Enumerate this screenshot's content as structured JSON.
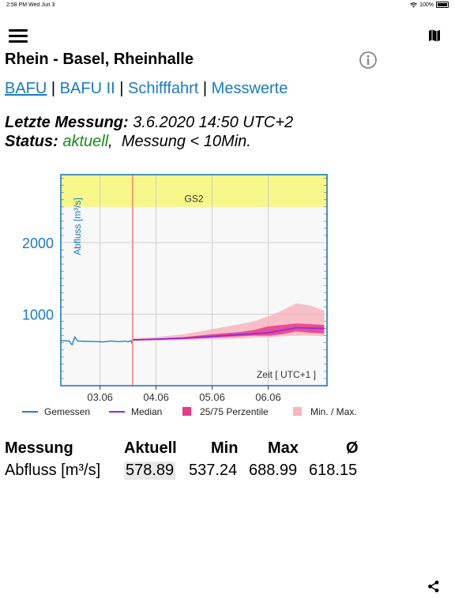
{
  "status_bar": {
    "time": "2:58 PM",
    "date": "Wed Jun 3",
    "battery": "100%"
  },
  "header": {
    "title": "Rhein - Basel, Rheinhalle"
  },
  "tabs": [
    {
      "label": "BAFU",
      "active": true
    },
    {
      "label": "BAFU II",
      "active": false
    },
    {
      "label": "Schifffahrt",
      "active": false
    },
    {
      "label": "Messwerte",
      "active": false
    }
  ],
  "tab_separator": "|",
  "measurement": {
    "last_label": "Letzte Messung:",
    "last_value": "3.6.2020 14:50 UTC+2",
    "status_label": "Status:",
    "status_value": "aktuell",
    "status_note": "Messung < 10Min."
  },
  "colors": {
    "link": "#1a7bbd",
    "measured": "#2f7fbf",
    "median": "#8a2be2",
    "percentile": "#e8398a",
    "minmax": "#f7b6bf",
    "danger_zone": "#f7f78a",
    "now_line": "#f08080"
  },
  "chart_data": {
    "type": "line",
    "ylabel": "Abfluss  [m³/s]",
    "xlabel": "Zeit  [ UTC+1 ]",
    "yticks": [
      1000,
      2000
    ],
    "xticks": [
      "03.06",
      "04.06",
      "05.06",
      "06.06"
    ],
    "ylim": [
      0,
      2950
    ],
    "xlim": [
      2.3,
      7.05
    ],
    "danger_band": {
      "label": "GS2",
      "from": 2500,
      "to": 2950
    },
    "now_x": 3.58,
    "legend": [
      {
        "label": "Gemessen",
        "type": "line"
      },
      {
        "label": "Median",
        "type": "line"
      },
      {
        "label": "25/75 Perzentile",
        "type": "box"
      },
      {
        "label": "Min. / Max.",
        "type": "box"
      }
    ],
    "measured": {
      "x": [
        2.3,
        2.45,
        2.5,
        2.55,
        2.6,
        2.75,
        2.9,
        3.05,
        3.2,
        3.35,
        3.45,
        3.5,
        3.55,
        3.58
      ],
      "y": [
        630,
        625,
        570,
        680,
        625,
        620,
        618,
        612,
        625,
        615,
        625,
        612,
        630,
        580
      ]
    },
    "median": {
      "x": [
        3.58,
        4.0,
        4.5,
        5.0,
        5.5,
        6.0,
        6.5,
        7.0
      ],
      "y": [
        640,
        650,
        665,
        690,
        715,
        740,
        810,
        800
      ]
    },
    "p25_p75": {
      "x": [
        3.58,
        4.0,
        4.5,
        5.0,
        5.5,
        5.75,
        6.0,
        6.25,
        6.5,
        6.75,
        7.0
      ],
      "low": [
        630,
        640,
        650,
        670,
        690,
        700,
        700,
        720,
        760,
        740,
        730
      ],
      "high": [
        650,
        660,
        680,
        720,
        750,
        780,
        830,
        850,
        870,
        860,
        850
      ]
    },
    "min_max": {
      "x": [
        3.58,
        4.0,
        4.5,
        5.0,
        5.5,
        5.75,
        6.0,
        6.25,
        6.5,
        6.75,
        7.0
      ],
      "low": [
        625,
        630,
        640,
        650,
        660,
        670,
        680,
        690,
        700,
        700,
        690
      ],
      "high": [
        660,
        680,
        720,
        790,
        860,
        900,
        970,
        1050,
        1150,
        1120,
        1050
      ]
    }
  },
  "table": {
    "headers": [
      "Messung",
      "Aktuell",
      "Min",
      "Max",
      "Ø"
    ],
    "rows": [
      {
        "name": "Abfluss  [m³/s]",
        "current": "578.89",
        "min": "537.24",
        "max": "688.99",
        "avg": "618.15"
      }
    ]
  }
}
